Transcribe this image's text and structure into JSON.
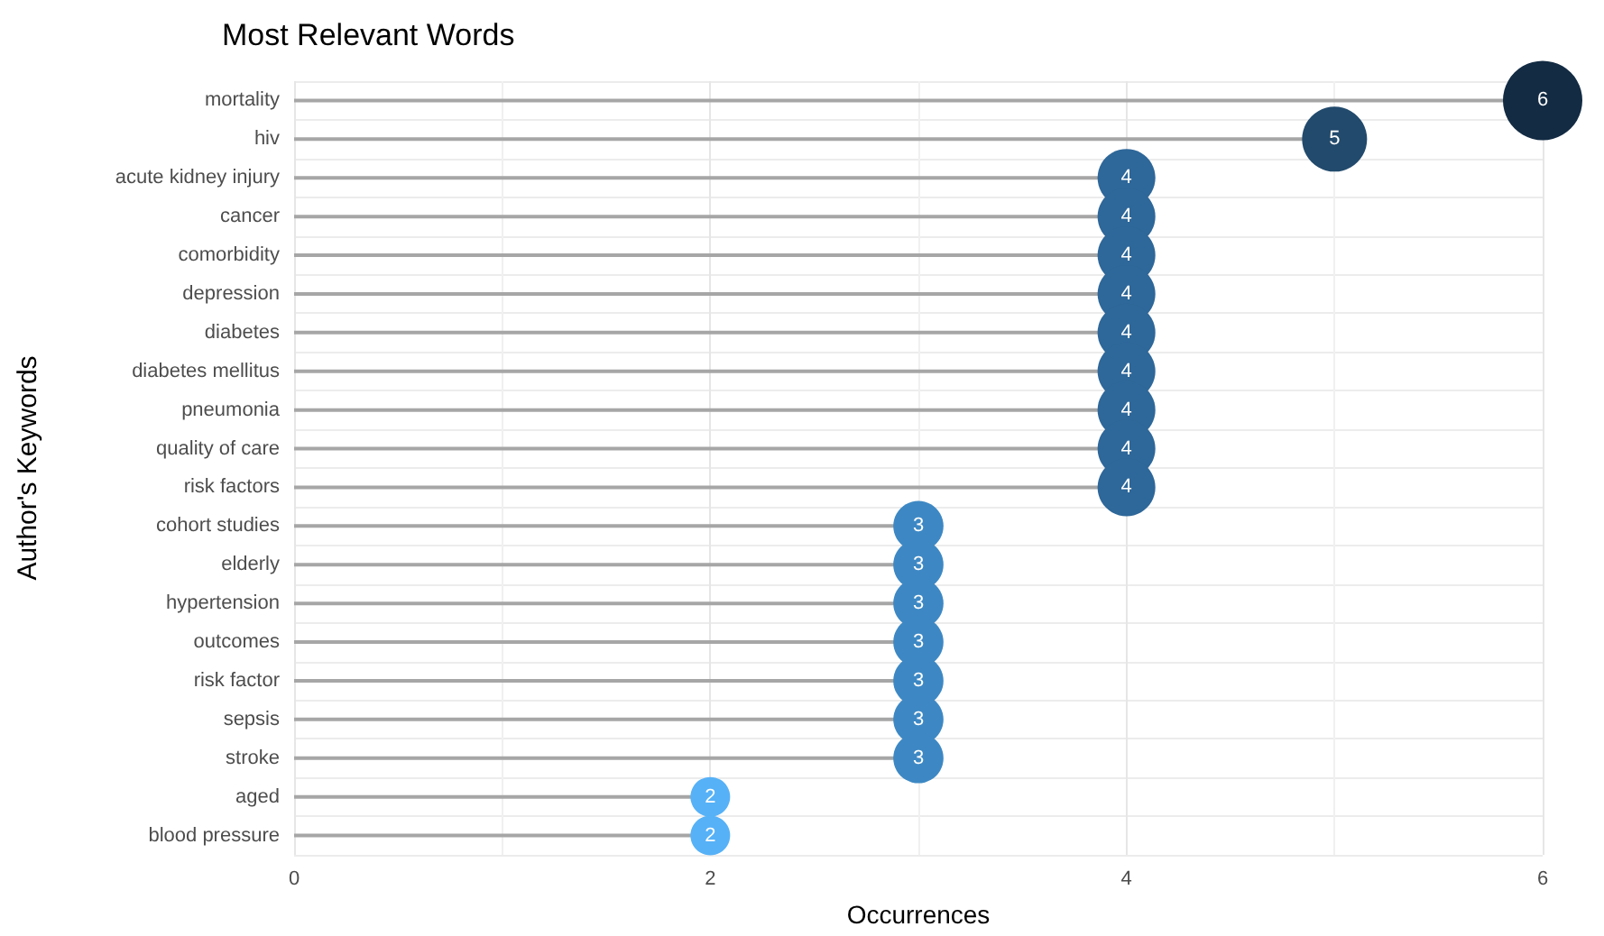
{
  "chart_data": {
    "type": "lollipop",
    "orientation": "horizontal",
    "title": "Most Relevant Words",
    "xlabel": "Occurrences",
    "ylabel": "Author's Keywords",
    "categories": [
      "mortality",
      "hiv",
      "acute kidney injury",
      "cancer",
      "comorbidity",
      "depression",
      "diabetes",
      "diabetes mellitus",
      "pneumonia",
      "quality of care",
      "risk factors",
      "cohort studies",
      "elderly",
      "hypertension",
      "outcomes",
      "risk factor",
      "sepsis",
      "stroke",
      "aged",
      "blood pressure"
    ],
    "values": [
      6,
      5,
      4,
      4,
      4,
      4,
      4,
      4,
      4,
      4,
      4,
      3,
      3,
      3,
      3,
      3,
      3,
      3,
      2,
      2
    ],
    "colors": [
      "#132b43",
      "#224a6c",
      "#2e6799",
      "#2e6799",
      "#2e6799",
      "#2e6799",
      "#2e6799",
      "#2e6799",
      "#2e6799",
      "#2e6799",
      "#2e6799",
      "#3d88c4",
      "#3d88c4",
      "#3d88c4",
      "#3d88c4",
      "#3d88c4",
      "#3d88c4",
      "#3d88c4",
      "#56b1f7",
      "#56b1f7"
    ],
    "sizes": [
      1,
      0.67,
      0.53,
      0.53,
      0.53,
      0.53,
      0.53,
      0.53,
      0.53,
      0.53,
      0.53,
      0.4,
      0.4,
      0.4,
      0.4,
      0.4,
      0.4,
      0.4,
      0.25,
      0.25
    ],
    "xlim": [
      0,
      6
    ],
    "xticks": [
      0,
      2,
      4,
      6
    ],
    "grid": true,
    "data_labels": true
  }
}
